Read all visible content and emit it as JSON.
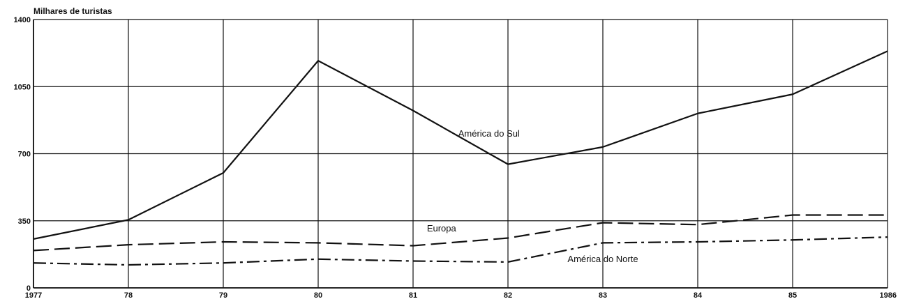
{
  "chart_data": {
    "type": "line",
    "ylabel": "Milhares de turistas",
    "x": [
      "1977",
      "78",
      "79",
      "80",
      "81",
      "82",
      "83",
      "84",
      "85",
      "1986"
    ],
    "ylim": [
      0,
      1400
    ],
    "yticks": [
      0,
      350,
      700,
      1050,
      1400
    ],
    "grid": true,
    "series": [
      {
        "name": "América do Sul",
        "line_style": "solid",
        "values": [
          255,
          355,
          600,
          1185,
          925,
          645,
          735,
          910,
          1010,
          1235
        ]
      },
      {
        "name": "Europa",
        "line_style": "dashed",
        "values": [
          195,
          225,
          240,
          235,
          220,
          260,
          340,
          330,
          380,
          380
        ]
      },
      {
        "name": "América do Norte",
        "line_style": "dash-dot",
        "values": [
          130,
          120,
          130,
          150,
          140,
          135,
          235,
          240,
          250,
          265
        ]
      }
    ],
    "colors": {
      "line": "#111111",
      "grid": "#111111",
      "background": "#ffffff"
    }
  }
}
